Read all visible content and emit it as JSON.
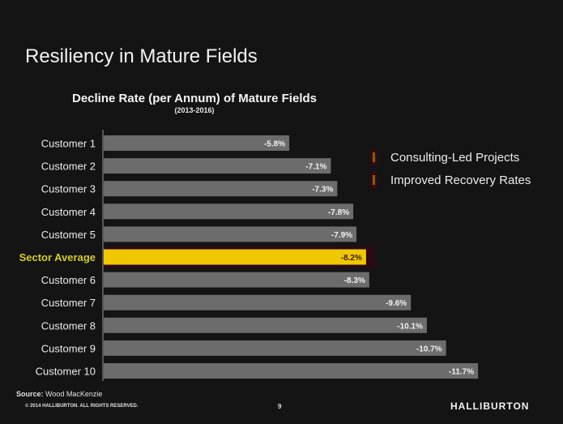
{
  "slide": {
    "title": "Resiliency in Mature Fields",
    "source_label": "Source:",
    "source_value": "Wood MacKenzie",
    "copyright": "© 2014 HALLIBURTON. ALL RIGHTS RESERVED.",
    "page_number": "9",
    "logo": "HALLIBURTON"
  },
  "colors": {
    "bar": "#6c6c6c",
    "highlight_bar": "#f0c800",
    "highlight_label": "#d4cc2a",
    "background": "#141414"
  },
  "legend": {
    "items": [
      {
        "label": "Consulting-Led Projects"
      },
      {
        "label": "Improved Recovery Rates"
      }
    ]
  },
  "chart_data": {
    "type": "bar",
    "orientation": "horizontal",
    "title": "Decline Rate (per Annum) of Mature Fields",
    "subtitle": "(2013-2016)",
    "xlabel": "",
    "ylabel": "",
    "xlim": [
      0,
      -11.7
    ],
    "grid": false,
    "legend_position": "right",
    "categories": [
      "Customer 1",
      "Customer 2",
      "Customer 3",
      "Customer 4",
      "Customer 5",
      "Sector Average",
      "Customer 6",
      "Customer 7",
      "Customer 8",
      "Customer 9",
      "Customer 10"
    ],
    "values": [
      -5.8,
      -7.1,
      -7.3,
      -7.8,
      -7.9,
      -8.2,
      -8.3,
      -9.6,
      -10.1,
      -10.7,
      -11.7
    ],
    "data_labels": [
      "-5.8%",
      "-7.1%",
      "-7.3%",
      "-7.8%",
      "-7.9%",
      "-8.2%",
      "-8.3%",
      "-9.6%",
      "-10.1%",
      "-10.7%",
      "-11.7%"
    ],
    "highlight_index": 5
  }
}
